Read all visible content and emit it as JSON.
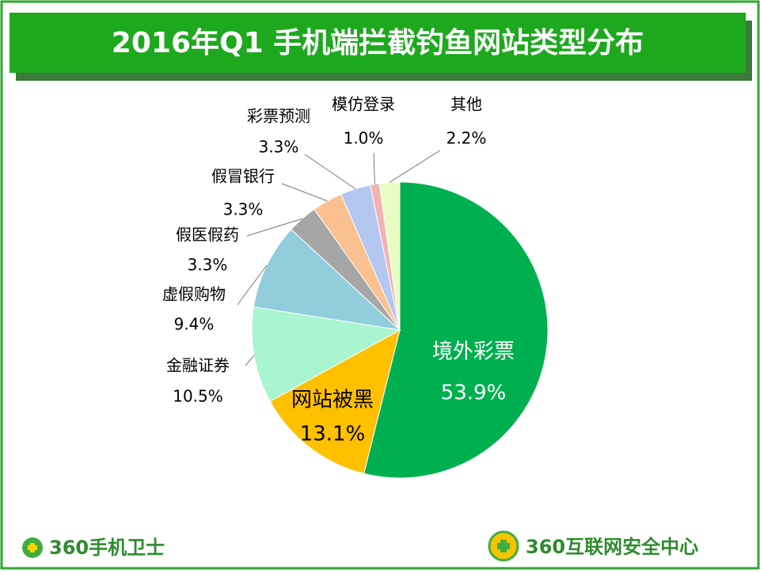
{
  "chart_data": {
    "type": "pie",
    "title": "2016年Q1 手机端拦截钓鱼网站类型分布",
    "categories": [
      "境外彩票",
      "网站被黑",
      "金融证券",
      "虚假购物",
      "假医假药",
      "假冒银行",
      "彩票预测",
      "模仿登录",
      "其他"
    ],
    "values": [
      53.9,
      13.1,
      10.5,
      9.4,
      3.3,
      3.3,
      3.3,
      1.0,
      2.2
    ],
    "value_labels": [
      "53.9%",
      "13.1%",
      "10.5%",
      "9.4%",
      "3.3%",
      "3.3%",
      "3.3%",
      "1.0%",
      "2.2%"
    ],
    "colors": [
      "#00b050",
      "#ffc000",
      "#a9f5d0",
      "#92cddc",
      "#a6a6a6",
      "#fac090",
      "#b4c7f0",
      "#f4b3b3",
      "#e8fdc4"
    ]
  },
  "footer": {
    "left": "360手机卫士",
    "right": "360互联网安全中心"
  }
}
